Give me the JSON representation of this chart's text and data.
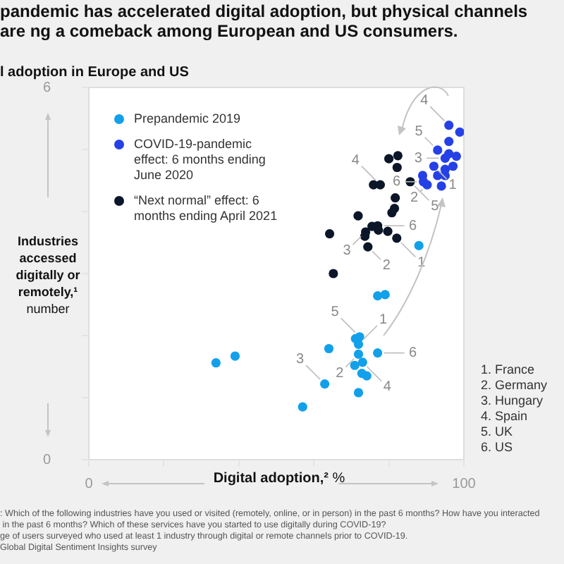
{
  "chart_data": {
    "type": "scatter",
    "title": "pandemic has accelerated digital adoption, but physical channels are ng a comeback among European and US consumers.",
    "subtitle": "l adoption in Europe and US",
    "xlabel": "Digital adoption,² %",
    "ylabel": "Industries accessed digitally or remotely,¹ number",
    "xlim": [
      0,
      100
    ],
    "xticks": [
      0,
      {
        "value": 20,
        "label": null
      },
      {
        "value": 40,
        "label": null
      },
      {
        "value": 60,
        "label": null
      },
      {
        "value": 80,
        "label": null
      },
      100
    ],
    "ylim": [
      0,
      6
    ],
    "yticks": [
      0,
      {
        "value": 1,
        "label": null
      },
      {
        "value": 2,
        "label": null
      },
      {
        "value": 3,
        "label": null
      },
      {
        "value": 4,
        "label": null
      },
      {
        "value": 5,
        "label": null
      },
      6
    ],
    "legend": "top left",
    "marker": "circle",
    "series": [
      {
        "name": "Prepandemic 2019",
        "color": "#13a0ea",
        "x": [
          33.9,
          39.0,
          57.0,
          62.9,
          64.0,
          70.9,
          71.9,
          71.9,
          71.1,
          72.2,
          73.0,
          72.8,
          74.1,
          71.9,
          77.0,
          77.0,
          79.0,
          88.0
        ],
        "values": [
          1.56,
          1.67,
          0.85,
          1.22,
          1.79,
          1.52,
          1.7,
          1.86,
          1.95,
          1.98,
          1.57,
          1.39,
          1.35,
          1.08,
          1.72,
          2.64,
          2.66,
          3.45
        ]
      },
      {
        "name": "COVID-19-pandemic effect: 6 months ending June 2020",
        "color": "#2541e6",
        "x": [
          96.0,
          98.9,
          96.0,
          93.0,
          96.0,
          98.0,
          95.0,
          97.0,
          97.1,
          92.0,
          95.0,
          93.0,
          95.0,
          89.0,
          89.2,
          90.2,
          94.0
        ],
        "values": [
          5.39,
          5.28,
          5.13,
          4.99,
          4.93,
          4.89,
          4.86,
          null,
          4.73,
          4.73,
          4.68,
          4.58,
          4.58,
          4.58,
          4.48,
          4.43,
          4.41
        ]
      },
      {
        "name": "“Next normal” effect: 6 months ending April 2021",
        "color": "#0b1629",
        "x": [
          80.0,
          82.4,
          82.2,
          75.9,
          77.7,
          85.7,
          81.7,
          81.5,
          80.8,
          71.8,
          75.5,
          77.0,
          77.2,
          79.7,
          73.8,
          73.6,
          82.1,
          64.2,
          74.4,
          65.2
        ],
        "values": [
          4.85,
          4.9,
          4.71,
          4.43,
          4.43,
          4.48,
          4.22,
          4.05,
          3.98,
          3.93,
          3.76,
          3.77,
          3.7,
          3.68,
          3.67,
          3.6,
          3.57,
          3.64,
          3.43,
          3.0
        ]
      }
    ],
    "annotations": [
      "1. France\n2. Germany\n3. Hungary\n4. Spain\n5. UK\n6. US",
      ": Which of the following industries have you used or visited (remotely, online, or in person) in the past 6 months? How have you interacted",
      " in the past 6 months? Which of these services have you started to use digitally during COVID-19?",
      "ge of users surveyed who used at least 1 industry through digital or remote channels prior to COVID-19.",
      "Global Digital Sentiment Insights survey",
      {
        "text": "5",
        "x": 72.2,
        "y": 1.98
      },
      {
        "text": "1",
        "x": 71.9,
        "y": 1.86
      },
      {
        "text": "2",
        "x": 71.9,
        "y": 1.7
      },
      {
        "text": "6",
        "x": 77.0,
        "y": 1.72
      },
      {
        "text": "4",
        "x": 73.0,
        "y": 1.57
      },
      {
        "text": "3",
        "x": 62.9,
        "y": 1.22
      },
      {
        "text": "4",
        "x": 77.7,
        "y": 4.43
      },
      {
        "text": "6",
        "x": 77.0,
        "y": 3.77
      },
      {
        "text": "5",
        "x": 85.7,
        "y": 4.48
      },
      {
        "text": "3",
        "x": 73.8,
        "y": 3.67
      },
      {
        "text": "2",
        "x": 74.4,
        "y": 3.43
      },
      {
        "text": "1",
        "x": 82.1,
        "y": 3.57
      },
      {
        "text": "4",
        "x": 96.0,
        "y": 5.39
      },
      {
        "text": "5",
        "x": 93.0,
        "y": 4.99
      },
      {
        "text": "3",
        "x": 95.0,
        "y": 4.86
      },
      {
        "text": "1",
        "x": 92.0,
        "y": 4.73
      },
      {
        "text": "2",
        "x": 90.2,
        "y": 4.43
      },
      {
        "text": "6",
        "x": 89.2,
        "y": 4.48
      }
    ]
  }
}
